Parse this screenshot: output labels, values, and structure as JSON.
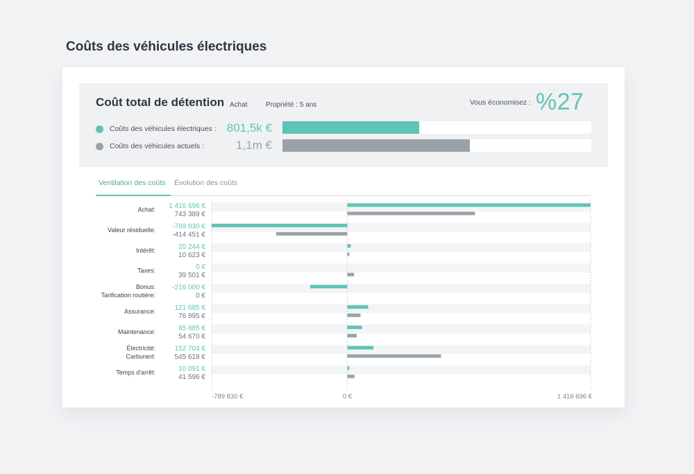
{
  "page": {
    "title": "Coûts des véhicules électriques"
  },
  "summary": {
    "title": "Coût total de détention",
    "tag_purchase": "Achat",
    "tag_ownership": "Propriété : 5 ans",
    "savings_label": "Vous économisez :",
    "savings_value": "%27",
    "ev": {
      "label": "Coûts des véhicules électriques :",
      "value": "801,5k €",
      "amount": 801.5
    },
    "current": {
      "label": "Coûts des véhicules actuels :",
      "value": "1,1m €",
      "amount": 1100
    },
    "scale_max": 1811
  },
  "tabs": [
    {
      "label": "Ventilation des coûts",
      "active": true
    },
    {
      "label": "Évolution des coûts",
      "active": false
    }
  ],
  "colors": {
    "ev": "#5ec4b6",
    "current": "#9aa1a9",
    "ev_text": "#5ec4b6",
    "current_text": "#6e747c"
  },
  "chart_data": {
    "type": "bar",
    "orientation": "horizontal",
    "xlim": [
      -789830,
      1416696
    ],
    "x_ticks": [
      {
        "value": -789830,
        "label": "-789 830 €"
      },
      {
        "value": 0,
        "label": "0 €"
      },
      {
        "value": 1416696,
        "label": "1 416 696 €"
      }
    ],
    "categories": [
      {
        "ev_label": "Achat:",
        "current_label": "",
        "ev_text": "1 416 696 €",
        "current_text": "743 389 €",
        "ev": 1416696,
        "current": 743389
      },
      {
        "ev_label": "Valeur résiduelle:",
        "current_label": "",
        "ev_text": "-789 830 €",
        "current_text": "-414 451 €",
        "ev": -789830,
        "current": -414451
      },
      {
        "ev_label": "Intérêt:",
        "current_label": "",
        "ev_text": "20 244 €",
        "current_text": "10 623 €",
        "ev": 20244,
        "current": 10623
      },
      {
        "ev_label": "Taxes:",
        "current_label": "",
        "ev_text": "0 €",
        "current_text": "39 501 €",
        "ev": 0,
        "current": 39501
      },
      {
        "ev_label": "Bonus:",
        "current_label": "Tarification routière:",
        "ev_text": "-216 000 €",
        "current_text": "0 €",
        "ev": -216000,
        "current": 0
      },
      {
        "ev_label": "Assurance:",
        "current_label": "",
        "ev_text": "121 685 €",
        "current_text": "76 895 €",
        "ev": 121685,
        "current": 76895
      },
      {
        "ev_label": "Maintenance:",
        "current_label": "",
        "ev_text": "85 885 €",
        "current_text": "54 670 €",
        "ev": 85885,
        "current": 54670
      },
      {
        "ev_label": "Électricité:",
        "current_label": "Carburant:",
        "ev_text": "152 704 €",
        "current_text": "545 618 €",
        "ev": 152704,
        "current": 545618
      },
      {
        "ev_label": "Temps d'arrêt:",
        "current_label": "",
        "ev_text": "10 091 €",
        "current_text": "41 596 €",
        "ev": 10091,
        "current": 41596
      }
    ]
  }
}
